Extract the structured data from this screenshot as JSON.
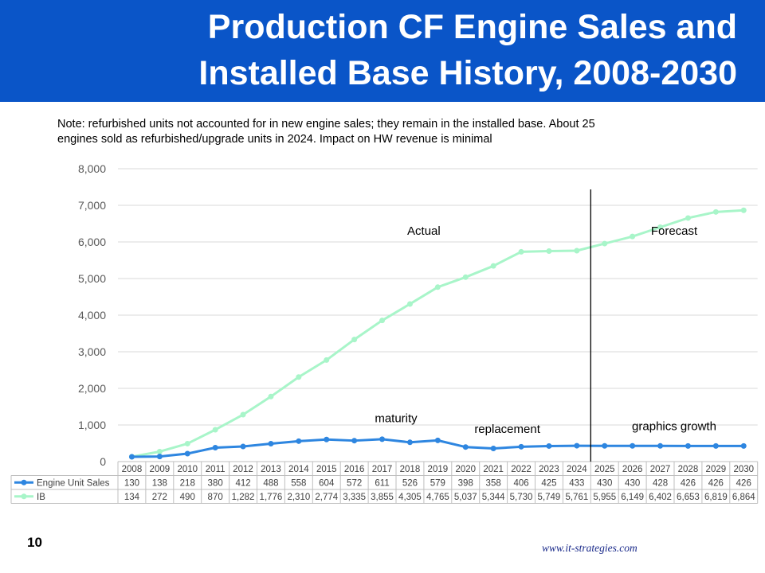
{
  "header": {
    "title_line1": "Production CF Engine Sales and",
    "title_line2": "Installed Base History, 2008-2030"
  },
  "note": {
    "line1": "Note: refurbished units not accounted for in new engine sales; they remain in the installed base.  About 25",
    "line2": "engines sold as refurbished/upgrade units in 2024.  Impact on HW revenue is minimal"
  },
  "chart_data": {
    "type": "line",
    "categories": [
      "2008",
      "2009",
      "2010",
      "2011",
      "2012",
      "2013",
      "2014",
      "2015",
      "2016",
      "2017",
      "2018",
      "2019",
      "2020",
      "2021",
      "2022",
      "2023",
      "2024",
      "2025",
      "2026",
      "2027",
      "2028",
      "2029",
      "2030"
    ],
    "series": [
      {
        "name": "Engine Unit Sales",
        "color": "#2e86e0",
        "values": [
          130,
          138,
          218,
          380,
          412,
          488,
          558,
          604,
          572,
          611,
          526,
          579,
          398,
          358,
          406,
          425,
          433,
          430,
          430,
          428,
          426,
          426,
          426
        ],
        "labels": [
          "130",
          "138",
          "218",
          "380",
          "412",
          "488",
          "558",
          "604",
          "572",
          "611",
          "526",
          "579",
          "398",
          "358",
          "406",
          "425",
          "433",
          "430",
          "430",
          "428",
          "426",
          "426",
          "426"
        ]
      },
      {
        "name": "IB",
        "color": "#a8f5c9",
        "values": [
          134,
          272,
          490,
          870,
          1282,
          1776,
          2310,
          2774,
          3335,
          3855,
          4305,
          4765,
          5037,
          5344,
          5730,
          5749,
          5761,
          5955,
          6149,
          6402,
          6653,
          6819,
          6864
        ],
        "labels": [
          "134",
          "272",
          "490",
          "870",
          "1,282",
          "1,776",
          "2,310",
          "2,774",
          "3,335",
          "3,855",
          "4,305",
          "4,765",
          "5,037",
          "5,344",
          "5,730",
          "5,749",
          "5,761",
          "5,955",
          "6,149",
          "6,402",
          "6,653",
          "6,819",
          "6,864"
        ]
      }
    ],
    "ylim": [
      0,
      8000
    ],
    "yticks": [
      0,
      1000,
      2000,
      3000,
      4000,
      5000,
      6000,
      7000,
      8000
    ],
    "ytick_labels": [
      "0",
      "1,000",
      "2,000",
      "3,000",
      "4,000",
      "5,000",
      "6,000",
      "7,000",
      "8,000"
    ],
    "grid": true,
    "legend": "data table below chart",
    "divider_after": "2024",
    "annotations": [
      {
        "text": "Actual",
        "x": "2018.5",
        "y": 6200
      },
      {
        "text": "Forecast",
        "x": "2027.5",
        "y": 6200
      },
      {
        "text": "maturity",
        "x": "2017.5",
        "y": 1080
      },
      {
        "text": "replacement",
        "x": "2021.5",
        "y": 780
      },
      {
        "text": "graphics growth",
        "x": "2027.5",
        "y": 860
      }
    ]
  },
  "footer": {
    "page_number": "10",
    "website": "www.it-strategies.com"
  }
}
